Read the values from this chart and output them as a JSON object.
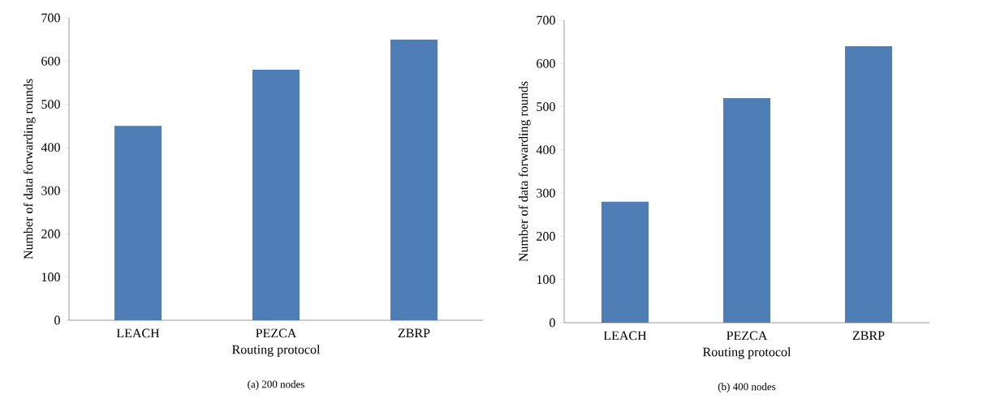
{
  "chart_data": [
    {
      "type": "bar",
      "title": "(a)  200 nodes",
      "xlabel": "Routing protocol",
      "ylabel": "Number of data forwarding rounds",
      "categories": [
        "LEACH",
        "PEZCA",
        "ZBRP"
      ],
      "values": [
        450,
        580,
        650
      ],
      "color": "#4f7db5",
      "ylim": [
        0,
        700
      ],
      "yticks": [
        0,
        100,
        200,
        300,
        400,
        500,
        600,
        700
      ]
    },
    {
      "type": "bar",
      "title": "(b)  400 nodes",
      "xlabel": "Routing protocol",
      "ylabel": "Number of data forwarding rounds",
      "categories": [
        "LEACH",
        "PEZCA",
        "ZBRP"
      ],
      "values": [
        280,
        520,
        640
      ],
      "color": "#4f7db5",
      "ylim": [
        0,
        700
      ],
      "yticks": [
        0,
        100,
        200,
        300,
        400,
        500,
        600,
        700
      ]
    }
  ]
}
